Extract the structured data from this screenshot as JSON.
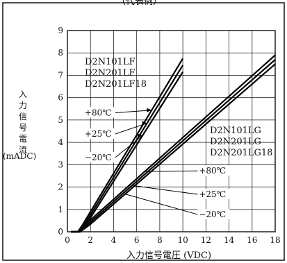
{
  "header": {
    "title_fragment": "（代表例）"
  },
  "chart_data": {
    "type": "line",
    "ylabel_chars": [
      "入",
      "力",
      "信",
      "号",
      "電",
      "流"
    ],
    "yunit": "(mADC)",
    "xlabel": "入力信号電圧 (VDC)",
    "xlim": [
      0,
      18
    ],
    "ylim": [
      0,
      9
    ],
    "xticks": [
      "0",
      "2",
      "4",
      "6",
      "8",
      "10",
      "12",
      "14",
      "16",
      "18"
    ],
    "yticks": [
      "0",
      "1",
      "2",
      "3",
      "4",
      "5",
      "6",
      "7",
      "8",
      "9"
    ],
    "grid": true,
    "groups": [
      {
        "labels": [
          "D2N101LF",
          "D2N201LF",
          "D2N201LF18"
        ],
        "series": [
          {
            "name": "+80℃",
            "x": [
              0.3,
              0.9,
              1.3,
              10.0
            ],
            "y": [
              0,
              0,
              0.3,
              7.75
            ]
          },
          {
            "name": "+25℃",
            "x": [
              0.3,
              1.0,
              1.45,
              10.0
            ],
            "y": [
              0,
              0,
              0.3,
              7.45
            ]
          },
          {
            "name": "−20℃",
            "x": [
              0.3,
              1.1,
              1.6,
              10.0
            ],
            "y": [
              0,
              0,
              0.3,
              7.15
            ]
          }
        ]
      },
      {
        "labels": [
          "D2N101LG",
          "D2N201LG",
          "D2N201LG18"
        ],
        "series": [
          {
            "name": "+80℃",
            "x": [
              0.3,
              0.9,
              1.5,
              18.0
            ],
            "y": [
              0,
              0,
              0.3,
              7.9
            ]
          },
          {
            "name": "+25℃",
            "x": [
              0.3,
              1.0,
              1.7,
              18.0
            ],
            "y": [
              0,
              0,
              0.3,
              7.7
            ]
          },
          {
            "name": "−20℃",
            "x": [
              0.3,
              1.1,
              1.9,
              18.0
            ],
            "y": [
              0,
              0,
              0.3,
              7.5
            ]
          }
        ]
      }
    ],
    "temp_annotations": [
      {
        "text": "+80℃",
        "group": 0,
        "series": 0,
        "at_x": 7.3,
        "label_x": 1.5,
        "label_y": 5.2
      },
      {
        "text": "+25℃",
        "group": 0,
        "series": 1,
        "at_x": 6.9,
        "label_x": 1.5,
        "label_y": 4.25
      },
      {
        "text": "−20℃",
        "group": 0,
        "series": 2,
        "at_x": 6.5,
        "label_x": 1.5,
        "label_y": 3.2
      },
      {
        "text": "+80℃",
        "group": 1,
        "series": 0,
        "at_x": 6.7,
        "label_x": 11.4,
        "label_y": 2.6
      },
      {
        "text": "+25℃",
        "group": 1,
        "series": 1,
        "at_x": 5.6,
        "label_x": 11.4,
        "label_y": 1.55
      },
      {
        "text": "−20℃",
        "group": 1,
        "series": 2,
        "at_x": 5.0,
        "label_x": 11.4,
        "label_y": 0.65
      }
    ]
  }
}
